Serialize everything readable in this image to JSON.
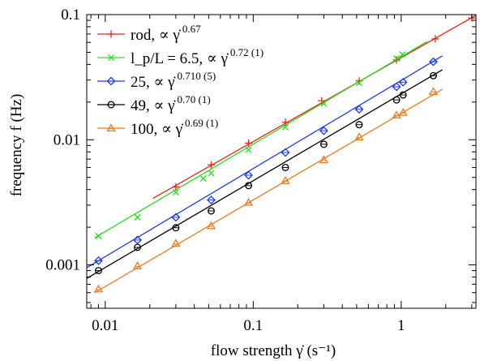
{
  "chart_data": {
    "type": "scatter",
    "title": "",
    "xlabel": "flow strength γ̇ (s⁻¹)",
    "ylabel": "frequency f (Hz)",
    "xscale": "log",
    "yscale": "log",
    "xlim": [
      0.0075,
      3.2
    ],
    "ylim": [
      0.00045,
      0.1
    ],
    "x_ticks": [
      {
        "value": 0.01,
        "label": "0.01"
      },
      {
        "value": 0.1,
        "label": "0.1"
      },
      {
        "value": 1,
        "label": "1"
      }
    ],
    "y_ticks": [
      {
        "value": 0.001,
        "label": "0.001"
      },
      {
        "value": 0.01,
        "label": "0.01"
      },
      {
        "value": 0.1,
        "label": "0.1"
      }
    ],
    "grid": false,
    "legend_position": "top-left",
    "series": [
      {
        "name": "rod, ∝ γ̇",
        "exponent": "0.67",
        "color": "#e8271a",
        "marker": "plus",
        "x": [
          0.03,
          0.052,
          0.093,
          0.165,
          0.29,
          0.52,
          0.93,
          1.7,
          3.0
        ],
        "y": [
          0.0042,
          0.0063,
          0.0094,
          0.0138,
          0.0205,
          0.0295,
          0.0435,
          0.064,
          0.094
        ],
        "fit": {
          "x": [
            0.021,
            3.2
          ],
          "y": [
            0.0034,
            0.0987
          ]
        }
      },
      {
        "name": "l_p/L = 6.5, ∝ γ̇",
        "exponent": "0.72 (1)",
        "color": "#22e01a",
        "marker": "cross",
        "x": [
          0.009,
          0.0165,
          0.03,
          0.046,
          0.052,
          0.093,
          0.165,
          0.3,
          0.52,
          0.93,
          1.02
        ],
        "y": [
          0.0017,
          0.0024,
          0.0038,
          0.0049,
          0.0054,
          0.0083,
          0.0126,
          0.0195,
          0.0285,
          0.0445,
          0.048
        ],
        "fit": {
          "x": [
            0.0085,
            1.5
          ],
          "y": [
            0.00165,
            0.0611
          ]
        }
      },
      {
        "name": "25,   ∝ γ̇",
        "exponent": "0.710 (5)",
        "color": "#1f3be8",
        "marker": "diamond",
        "x": [
          0.009,
          0.0165,
          0.03,
          0.052,
          0.093,
          0.165,
          0.3,
          0.52,
          0.93,
          1.03,
          1.65
        ],
        "y": [
          0.00108,
          0.00158,
          0.0024,
          0.0033,
          0.0052,
          0.0079,
          0.0118,
          0.0175,
          0.0265,
          0.0288,
          0.042
        ],
        "fit": {
          "x": [
            0.0075,
            1.9
          ],
          "y": [
            0.00095,
            0.0468
          ]
        }
      },
      {
        "name": "49,   ∝ γ̇",
        "exponent": "0.70 (1)",
        "color": "#000000",
        "marker": "circle",
        "x": [
          0.009,
          0.0165,
          0.03,
          0.052,
          0.093,
          0.165,
          0.3,
          0.52,
          0.93,
          1.03,
          1.65
        ],
        "y": [
          0.0009,
          0.00138,
          0.00198,
          0.0027,
          0.0043,
          0.006,
          0.0092,
          0.0132,
          0.0208,
          0.0228,
          0.0325
        ],
        "fit": {
          "x": [
            0.0075,
            1.9
          ],
          "y": [
            0.00078,
            0.0363
          ]
        }
      },
      {
        "name": "100, ∝ γ̇",
        "exponent": "0.69 (1)",
        "color": "#f07a1c",
        "marker": "triangle",
        "x": [
          0.009,
          0.0165,
          0.03,
          0.052,
          0.093,
          0.165,
          0.3,
          0.52,
          0.93,
          1.03,
          1.65
        ],
        "y": [
          0.00064,
          0.00098,
          0.00148,
          0.00205,
          0.00315,
          0.0047,
          0.0069,
          0.0105,
          0.0157,
          0.0165,
          0.0242
        ],
        "fit": {
          "x": [
            0.0085,
            1.9
          ],
          "y": [
            0.0006,
            0.0253
          ]
        }
      }
    ]
  }
}
